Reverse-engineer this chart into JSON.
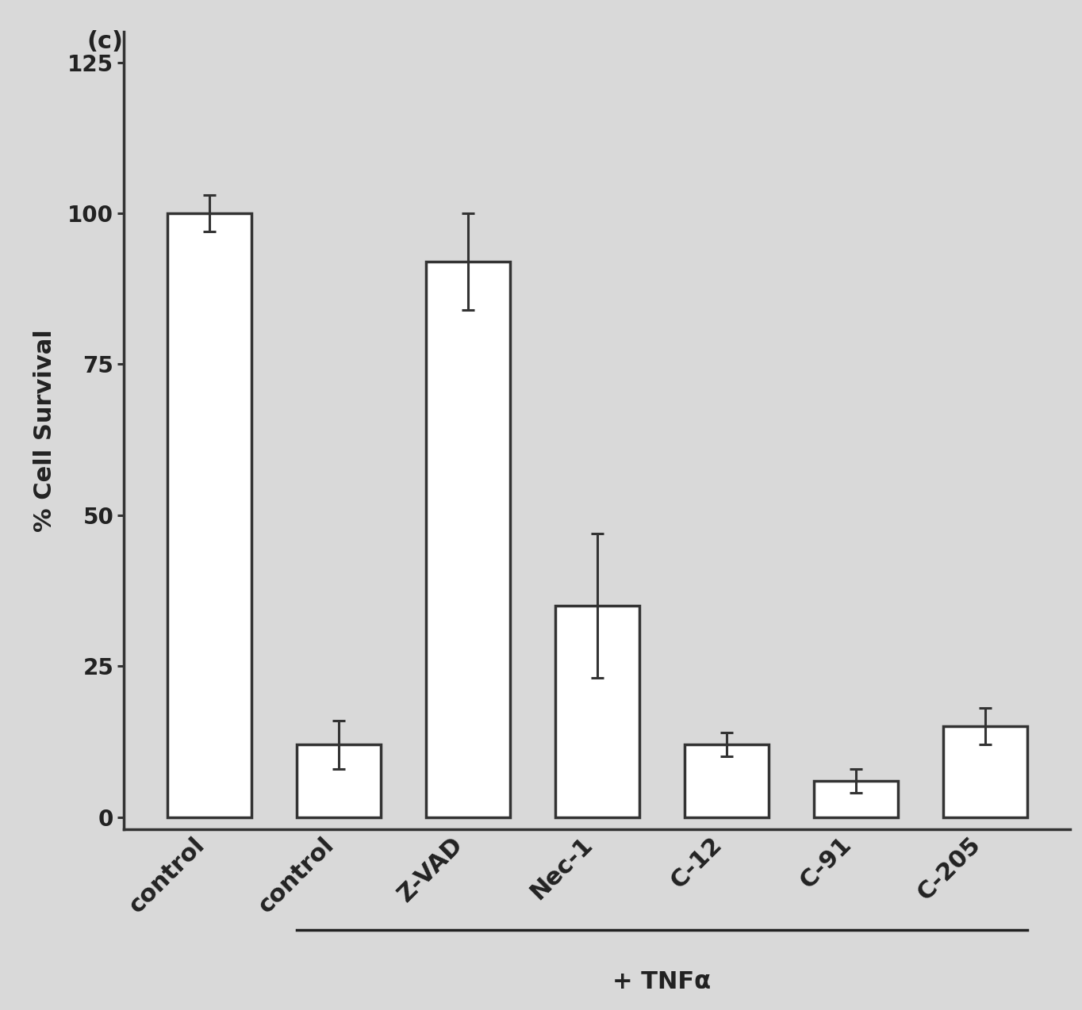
{
  "categories": [
    "control",
    "control",
    "Z-VAD",
    "Nec-1",
    "C-12",
    "C-91",
    "C-205"
  ],
  "values": [
    100,
    12,
    92,
    35,
    12,
    6,
    15
  ],
  "errors": [
    3,
    4,
    8,
    12,
    2,
    2,
    3
  ],
  "bar_color": "#ffffff",
  "bar_edgecolor": "#333333",
  "bar_linewidth": 2.5,
  "ylabel": "% Cell Survival",
  "yticks": [
    0,
    25,
    50,
    75,
    100,
    125
  ],
  "ylim": [
    -2,
    130
  ],
  "panel_label": "(c)",
  "tnf_label": "+ TNFα",
  "background_color": "#d9d9d9",
  "figsize": [
    13.64,
    12.74
  ],
  "dpi": 100,
  "ylabel_fontsize": 22,
  "tick_fontsize": 20,
  "xlabel_fontsize": 22,
  "panel_fontsize": 22
}
